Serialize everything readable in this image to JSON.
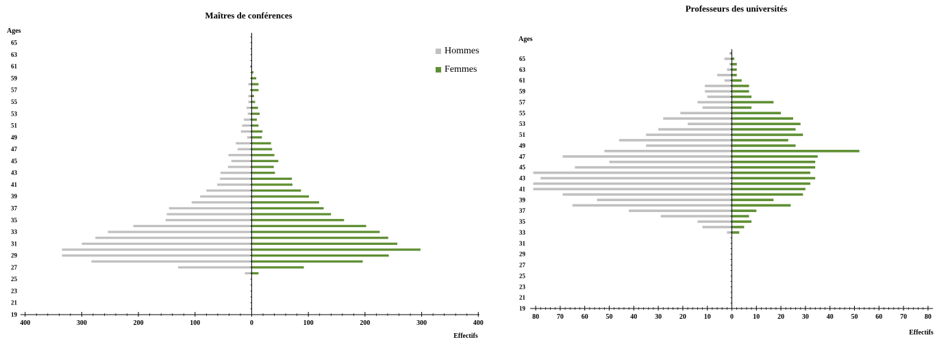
{
  "legend": {
    "men": "Hommes",
    "women": "Femmes",
    "men_color": "#c0c0c0",
    "women_color": "#5f8f33"
  },
  "chart_data": [
    {
      "type": "bar",
      "orientation": "horizontal-pyramid",
      "title": "Maîtres de conférences",
      "ylabel": "Ages",
      "xlabel": "Effectifs",
      "xlim": [
        -400,
        400
      ],
      "x_ticks": [
        400,
        300,
        200,
        100,
        0,
        100,
        200,
        300,
        400
      ],
      "y_ticks": [
        65,
        63,
        61,
        59,
        57,
        55,
        53,
        51,
        49,
        47,
        45,
        43,
        41,
        39,
        37,
        35,
        33,
        31,
        29,
        27,
        25,
        23,
        21,
        19
      ],
      "ages": [
        65,
        64,
        63,
        62,
        61,
        60,
        59,
        58,
        57,
        56,
        55,
        54,
        53,
        52,
        51,
        50,
        49,
        48,
        47,
        46,
        45,
        44,
        43,
        42,
        41,
        40,
        39,
        38,
        37,
        36,
        35,
        34,
        33,
        32,
        31,
        30,
        29,
        28,
        27,
        26,
        25
      ],
      "series": [
        {
          "name": "Hommes",
          "values": [
            0,
            0,
            0,
            0,
            3,
            0,
            2,
            6,
            3,
            6,
            6,
            9,
            7,
            14,
            17,
            19,
            8,
            28,
            25,
            41,
            36,
            42,
            55,
            56,
            61,
            80,
            91,
            106,
            146,
            150,
            152,
            209,
            254,
            276,
            300,
            335,
            335,
            283,
            130,
            12,
            0
          ]
        },
        {
          "name": "Femmes",
          "values": [
            0,
            0,
            0,
            0,
            0,
            3,
            8,
            12,
            12,
            4,
            6,
            11,
            14,
            9,
            12,
            19,
            18,
            34,
            36,
            40,
            47,
            39,
            41,
            71,
            72,
            87,
            101,
            119,
            127,
            140,
            163,
            202,
            226,
            241,
            257,
            298,
            242,
            196,
            92,
            12,
            0
          ]
        }
      ]
    },
    {
      "type": "bar",
      "orientation": "horizontal-pyramid",
      "title": "Professeurs des universités",
      "ylabel": "Ages",
      "xlabel": "Effectifs",
      "xlim": [
        -80,
        80
      ],
      "x_ticks": [
        80,
        70,
        60,
        50,
        40,
        30,
        20,
        10,
        0,
        10,
        20,
        30,
        40,
        50,
        60,
        70,
        80
      ],
      "y_ticks": [
        65,
        63,
        61,
        59,
        57,
        55,
        53,
        51,
        49,
        47,
        45,
        43,
        41,
        39,
        37,
        35,
        33,
        31,
        29,
        27,
        25,
        23,
        21,
        19
      ],
      "ages": [
        66,
        65,
        64,
        63,
        62,
        61,
        60,
        59,
        58,
        57,
        56,
        55,
        54,
        53,
        52,
        51,
        50,
        49,
        48,
        47,
        46,
        45,
        44,
        43,
        42,
        41,
        40,
        39,
        38,
        37,
        36,
        35,
        34,
        33
      ],
      "series": [
        {
          "name": "Hommes",
          "values": [
            1,
            3,
            1,
            2,
            6,
            3,
            11,
            11,
            10,
            14,
            12,
            21,
            28,
            18,
            30,
            35,
            46,
            35,
            52,
            69,
            50,
            64,
            81,
            78,
            81,
            81,
            69,
            55,
            65,
            42,
            29,
            14,
            12,
            2
          ]
        },
        {
          "name": "Femmes",
          "values": [
            0,
            1,
            2,
            2,
            2,
            4,
            7,
            7,
            8,
            17,
            8,
            20,
            25,
            28,
            26,
            29,
            23,
            26,
            52,
            35,
            34,
            34,
            32,
            34,
            32,
            30,
            29,
            17,
            24,
            10,
            7,
            8,
            5,
            3
          ]
        }
      ]
    }
  ]
}
